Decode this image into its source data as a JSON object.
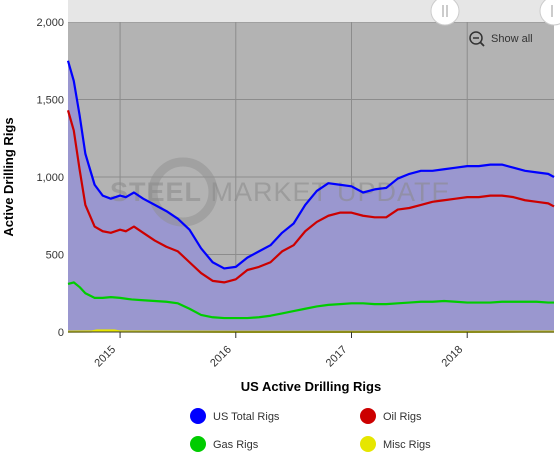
{
  "chart_data": {
    "type": "area",
    "xlabel": "US Active Drilling Rigs",
    "ylabel": "Active Drilling Rigs",
    "ylim": [
      0,
      2000
    ],
    "y_ticks": [
      0,
      500,
      1000,
      1500,
      2000
    ],
    "y_tick_labels": [
      "0",
      "500",
      "1,000",
      "1,500",
      "2,000"
    ],
    "xlim": [
      2014.55,
      2018.75
    ],
    "x_ticks": [
      2015,
      2016,
      2017,
      2018
    ],
    "x_tick_labels": [
      "2015",
      "2016",
      "2017",
      "2018"
    ],
    "grid": true,
    "legend_position": "bottom",
    "series": [
      {
        "name": "US Total Rigs",
        "color": "#0000ff",
        "fill": "#9a97cf",
        "x": [
          2014.55,
          2014.6,
          2014.65,
          2014.7,
          2014.78,
          2014.85,
          2014.92,
          2015.0,
          2015.05,
          2015.12,
          2015.2,
          2015.3,
          2015.4,
          2015.5,
          2015.6,
          2015.7,
          2015.8,
          2015.9,
          2016.0,
          2016.1,
          2016.2,
          2016.3,
          2016.4,
          2016.5,
          2016.6,
          2016.7,
          2016.8,
          2016.9,
          2017.0,
          2017.1,
          2017.2,
          2017.3,
          2017.4,
          2017.5,
          2017.6,
          2017.7,
          2017.8,
          2017.9,
          2018.0,
          2018.1,
          2018.2,
          2018.3,
          2018.4,
          2018.5,
          2018.6,
          2018.7,
          2018.75
        ],
        "y": [
          1750,
          1620,
          1400,
          1150,
          950,
          880,
          860,
          880,
          870,
          900,
          860,
          820,
          780,
          730,
          660,
          540,
          450,
          410,
          420,
          480,
          520,
          560,
          640,
          700,
          820,
          910,
          960,
          950,
          940,
          900,
          920,
          930,
          990,
          1020,
          1040,
          1040,
          1050,
          1060,
          1070,
          1070,
          1080,
          1080,
          1060,
          1040,
          1030,
          1020,
          1000
        ]
      },
      {
        "name": "Oil Rigs",
        "color": "#cc0000",
        "x": [
          2014.55,
          2014.6,
          2014.65,
          2014.7,
          2014.78,
          2014.85,
          2014.92,
          2015.0,
          2015.05,
          2015.12,
          2015.2,
          2015.3,
          2015.4,
          2015.5,
          2015.6,
          2015.7,
          2015.8,
          2015.9,
          2016.0,
          2016.1,
          2016.2,
          2016.3,
          2016.4,
          2016.5,
          2016.6,
          2016.7,
          2016.8,
          2016.9,
          2017.0,
          2017.1,
          2017.2,
          2017.3,
          2017.4,
          2017.5,
          2017.6,
          2017.7,
          2017.8,
          2017.9,
          2018.0,
          2018.1,
          2018.2,
          2018.3,
          2018.4,
          2018.5,
          2018.6,
          2018.7,
          2018.75
        ],
        "y": [
          1430,
          1300,
          1050,
          820,
          680,
          650,
          640,
          660,
          650,
          680,
          640,
          590,
          550,
          520,
          450,
          380,
          330,
          320,
          340,
          400,
          420,
          450,
          520,
          560,
          650,
          710,
          750,
          770,
          770,
          750,
          740,
          740,
          790,
          800,
          820,
          840,
          850,
          860,
          870,
          870,
          880,
          880,
          870,
          850,
          840,
          830,
          810
        ]
      },
      {
        "name": "Gas Rigs",
        "color": "#00cc00",
        "x": [
          2014.55,
          2014.6,
          2014.65,
          2014.7,
          2014.78,
          2014.85,
          2014.92,
          2015.0,
          2015.1,
          2015.2,
          2015.3,
          2015.4,
          2015.5,
          2015.6,
          2015.7,
          2015.8,
          2015.9,
          2016.0,
          2016.1,
          2016.2,
          2016.3,
          2016.4,
          2016.5,
          2016.6,
          2016.7,
          2016.8,
          2016.9,
          2017.0,
          2017.1,
          2017.2,
          2017.3,
          2017.4,
          2017.5,
          2017.6,
          2017.7,
          2017.8,
          2017.9,
          2018.0,
          2018.1,
          2018.2,
          2018.3,
          2018.4,
          2018.5,
          2018.6,
          2018.7,
          2018.75
        ],
        "y": [
          310,
          320,
          290,
          250,
          220,
          220,
          225,
          220,
          210,
          205,
          200,
          195,
          185,
          150,
          110,
          95,
          90,
          90,
          90,
          95,
          105,
          120,
          135,
          150,
          165,
          175,
          180,
          185,
          185,
          180,
          180,
          185,
          190,
          195,
          195,
          200,
          195,
          190,
          190,
          190,
          195,
          195,
          195,
          195,
          190,
          190
        ]
      },
      {
        "name": "Misc Rigs",
        "color": "#e6e600",
        "x": [
          2014.55,
          2014.75,
          2014.8,
          2014.95,
          2015.0,
          2015.5,
          2016.0,
          2016.5,
          2017.0,
          2017.5,
          2018.0,
          2018.5,
          2018.75
        ],
        "y": [
          2,
          3,
          10,
          10,
          3,
          2,
          1,
          1,
          1,
          1,
          1,
          2,
          2
        ]
      }
    ]
  },
  "watermark": {
    "text_bold": "STEEL",
    "text_rest": " MARKET UPDATE"
  },
  "zoom": {
    "show_all_label": "Show all",
    "icon": "zoom-out-icon"
  }
}
